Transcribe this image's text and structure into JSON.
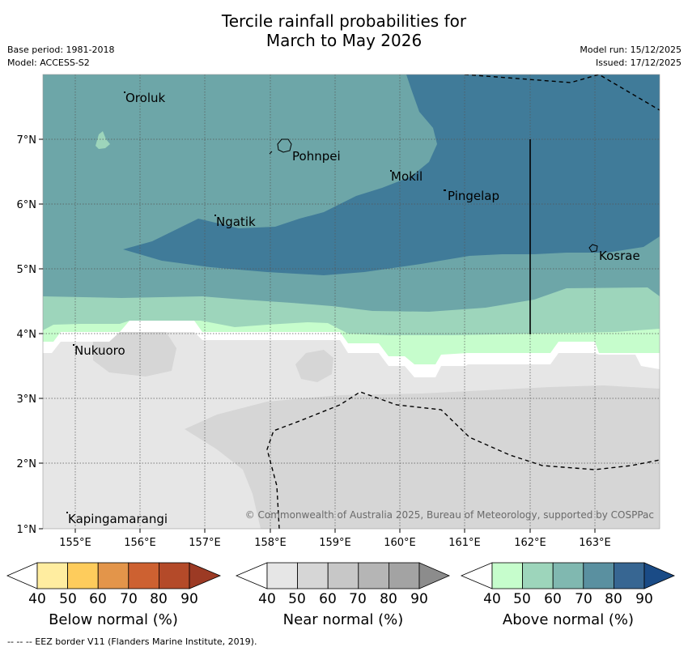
{
  "title_line1": "Tercile rainfall probabilities for",
  "title_line2": "March to May 2026",
  "base_period": "Base period: 1981-2018",
  "model": "Model: ACCESS-S2",
  "model_run": "Model run: 15/12/2025",
  "issued": "Issued: 17/12/2025",
  "map": {
    "lat_labels": [
      "7°N",
      "6°N",
      "5°N",
      "4°N",
      "3°N",
      "2°N",
      "1°N"
    ],
    "lon_labels": [
      "155°E",
      "156°E",
      "157°E",
      "158°E",
      "159°E",
      "160°E",
      "161°E",
      "162°E",
      "163°E"
    ],
    "places": {
      "oroluk": "Oroluk",
      "pohnpei": "Pohnpei",
      "mokil": "Mokil",
      "pingelap": "Pingelap",
      "ngatik": "Ngatik",
      "kosrae": "Kosrae",
      "nukuoro": "Nukuoro",
      "kapingamarangi": "Kapingamarangi"
    },
    "copyright": "© Commonwealth of Australia 2025, Bureau of Meteorology, supported by COSPPac"
  },
  "colorbars": {
    "below": {
      "title": "Below normal (%)",
      "ticks": [
        "40",
        "50",
        "60",
        "70",
        "80",
        "90"
      ],
      "colors": [
        "#ffeda0",
        "#fecc5c",
        "#e3954a",
        "#cd6131",
        "#b44a29",
        "#9c3a24"
      ]
    },
    "near": {
      "title": "Near normal (%)",
      "ticks": [
        "40",
        "50",
        "60",
        "70",
        "80",
        "90"
      ],
      "colors": [
        "#e6e6e6",
        "#d6d6d6",
        "#c7c7c7",
        "#b5b5b5",
        "#a3a3a3",
        "#8c8c8c"
      ]
    },
    "above": {
      "title": "Above normal (%)",
      "ticks": [
        "40",
        "50",
        "60",
        "70",
        "80",
        "90"
      ],
      "colors": [
        "#c6fdcc",
        "#9dd5bb",
        "#80b8b0",
        "#5a90a0",
        "#376692",
        "#1a4b86"
      ]
    }
  },
  "footer": "--  --  -- EEZ border V11 (Flanders Marine Institute, 2019)."
}
